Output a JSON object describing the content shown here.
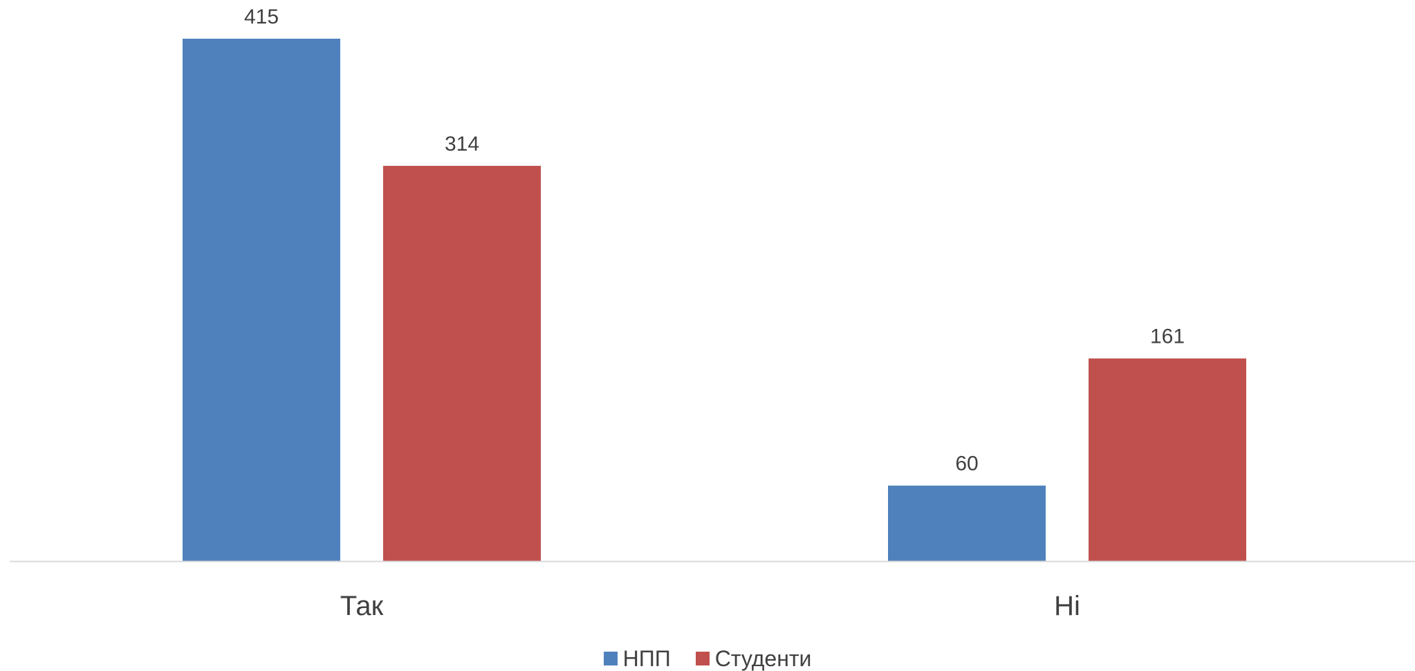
{
  "chart_data": {
    "type": "bar",
    "categories": [
      "Так",
      "Ні"
    ],
    "series": [
      {
        "name": "НПП",
        "values": [
          415,
          60
        ],
        "color": "#4F81BD"
      },
      {
        "name": "Студенти",
        "values": [
          314,
          161
        ],
        "color": "#C0504D"
      }
    ],
    "ylim": [
      0,
      415
    ],
    "grid": false,
    "legend_position": "bottom",
    "data_labels": true,
    "axis_color": "#D9D9D9",
    "text_color": "#404040"
  }
}
